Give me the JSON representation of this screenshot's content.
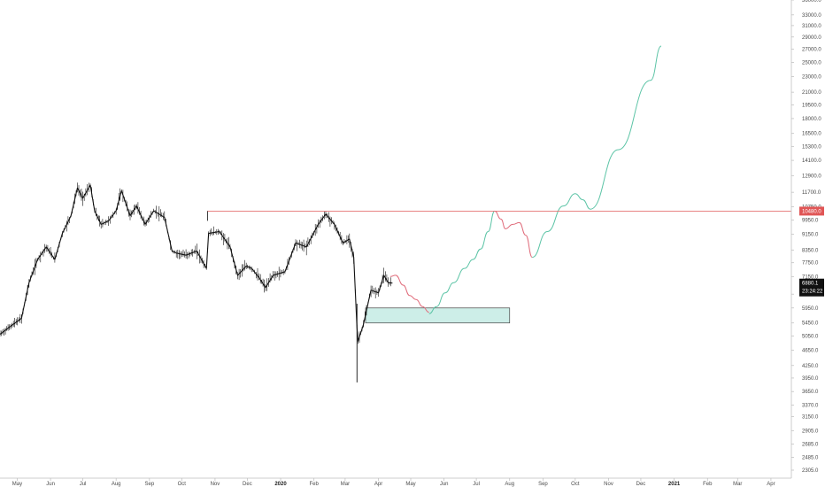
{
  "colors": {
    "background": "#ffffff",
    "candle": "#111111",
    "resistance_line": "#e57373",
    "resistance_badge": "#e05656",
    "price_badge": "#111111",
    "zone_fill": "#cdeee8",
    "zone_stroke": "#444444",
    "projection_up": "#5cc4a6",
    "projection_down": "#e06b7a",
    "axis": "#cccccc"
  },
  "chart_data": {
    "type": "line",
    "y_scale": "log",
    "x_range": [
      "2019-04-15",
      "2021-04-20"
    ],
    "y_range": [
      2200,
      36000
    ],
    "y_ticks": [
      2305.0,
      2485.0,
      2685.0,
      2905.0,
      3150.0,
      3370.0,
      3650.0,
      3950.0,
      4250.0,
      4650.0,
      5050.0,
      5450.0,
      5950.0,
      6450.0,
      7150.0,
      7750.0,
      8350.0,
      9150.0,
      9950.0,
      10750.0,
      11700.0,
      12900.0,
      14100.0,
      15300.0,
      16500.0,
      18000.0,
      19500.0,
      21000.0,
      23000.0,
      25000.0,
      27000.0,
      29000.0,
      31000.0,
      33000.0,
      36000.0
    ],
    "x_ticks": [
      {
        "label": "May",
        "date": "2019-05-01"
      },
      {
        "label": "Jun",
        "date": "2019-06-01"
      },
      {
        "label": "Jul",
        "date": "2019-07-01"
      },
      {
        "label": "Aug",
        "date": "2019-08-01"
      },
      {
        "label": "Sep",
        "date": "2019-09-01"
      },
      {
        "label": "Oct",
        "date": "2019-10-01"
      },
      {
        "label": "Nov",
        "date": "2019-11-01"
      },
      {
        "label": "Dec",
        "date": "2019-12-01"
      },
      {
        "label": "2020",
        "date": "2020-01-01",
        "bold": true
      },
      {
        "label": "Feb",
        "date": "2020-02-01"
      },
      {
        "label": "Mar",
        "date": "2020-03-01"
      },
      {
        "label": "Apr",
        "date": "2020-04-01"
      },
      {
        "label": "May",
        "date": "2020-05-01"
      },
      {
        "label": "Jun",
        "date": "2020-06-01"
      },
      {
        "label": "Jul",
        "date": "2020-07-01"
      },
      {
        "label": "Aug",
        "date": "2020-08-01"
      },
      {
        "label": "Sep",
        "date": "2020-09-01"
      },
      {
        "label": "Oct",
        "date": "2020-10-01"
      },
      {
        "label": "Nov",
        "date": "2020-11-01"
      },
      {
        "label": "Dec",
        "date": "2020-12-01"
      },
      {
        "label": "2021",
        "date": "2021-01-01",
        "bold": true
      },
      {
        "label": "Feb",
        "date": "2021-02-01"
      },
      {
        "label": "Mar",
        "date": "2021-03-01"
      },
      {
        "label": "Apr",
        "date": "2021-04-01"
      }
    ],
    "price_series": {
      "x": [
        "2019-04-15",
        "2019-04-25",
        "2019-05-05",
        "2019-05-12",
        "2019-05-20",
        "2019-05-28",
        "2019-06-05",
        "2019-06-12",
        "2019-06-20",
        "2019-06-26",
        "2019-07-01",
        "2019-07-08",
        "2019-07-12",
        "2019-07-18",
        "2019-07-25",
        "2019-08-01",
        "2019-08-06",
        "2019-08-14",
        "2019-08-20",
        "2019-08-28",
        "2019-09-05",
        "2019-09-15",
        "2019-09-22",
        "2019-09-26",
        "2019-10-05",
        "2019-10-15",
        "2019-10-24",
        "2019-10-26",
        "2019-11-05",
        "2019-11-15",
        "2019-11-22",
        "2019-11-30",
        "2019-12-05",
        "2019-12-12",
        "2019-12-18",
        "2019-12-25",
        "2020-01-05",
        "2020-01-15",
        "2020-01-25",
        "2020-02-05",
        "2020-02-12",
        "2020-02-20",
        "2020-02-28",
        "2020-03-05",
        "2020-03-09",
        "2020-03-12",
        "2020-03-13",
        "2020-03-18",
        "2020-03-25",
        "2020-04-01",
        "2020-04-06",
        "2020-04-10",
        "2020-04-14"
      ],
      "close": [
        5100,
        5350,
        5600,
        6900,
        7900,
        8500,
        7900,
        9200,
        10200,
        12000,
        11300,
        12200,
        10500,
        9700,
        9900,
        10500,
        11800,
        10200,
        10800,
        9700,
        10500,
        10100,
        8300,
        8200,
        8100,
        8300,
        7500,
        9200,
        9300,
        8500,
        7200,
        7600,
        7500,
        7100,
        6700,
        7200,
        7350,
        8700,
        8500,
        9700,
        10300,
        9700,
        8700,
        8900,
        8000,
        5300,
        4900,
        5400,
        6600,
        6500,
        7200,
        6900,
        6880
      ]
    },
    "projection_down": {
      "x": [
        "2020-04-12",
        "2020-04-17",
        "2020-04-24",
        "2020-04-30",
        "2020-05-06",
        "2020-05-12",
        "2020-05-18"
      ],
      "y": [
        7150,
        7200,
        6800,
        6400,
        6250,
        6000,
        5800
      ]
    },
    "projection_up": {
      "x": [
        "2020-05-18",
        "2020-05-25",
        "2020-06-02",
        "2020-06-10",
        "2020-06-20",
        "2020-06-28",
        "2020-07-05",
        "2020-07-12",
        "2020-07-18"
      ],
      "y": [
        5750,
        6000,
        6500,
        6900,
        7500,
        7900,
        8400,
        9300,
        10480
      ]
    },
    "projection_down2": {
      "x": [
        "2020-07-18",
        "2020-07-24",
        "2020-07-28",
        "2020-08-04",
        "2020-08-10",
        "2020-08-16",
        "2020-08-22"
      ],
      "y": [
        10480,
        10000,
        9450,
        9700,
        9800,
        9100,
        8000
      ]
    },
    "projection_up2": {
      "x": [
        "2020-08-22",
        "2020-09-05",
        "2020-09-20",
        "2020-10-01",
        "2020-10-08",
        "2020-10-15",
        "2020-11-10",
        "2020-12-10",
        "2020-12-20"
      ],
      "y": [
        8000,
        9300,
        10800,
        11600,
        11200,
        10600,
        15000,
        22500,
        27500
      ]
    },
    "resistance": {
      "value": 10480,
      "from": "2019-10-25",
      "label": "10480.0"
    },
    "current_price": {
      "value": 6880.1,
      "label": "6880.1",
      "countdown": "23:24:22"
    },
    "demand_zone": {
      "from": "2020-03-20",
      "to": "2020-08-01",
      "low": 5450,
      "high": 5950
    }
  }
}
